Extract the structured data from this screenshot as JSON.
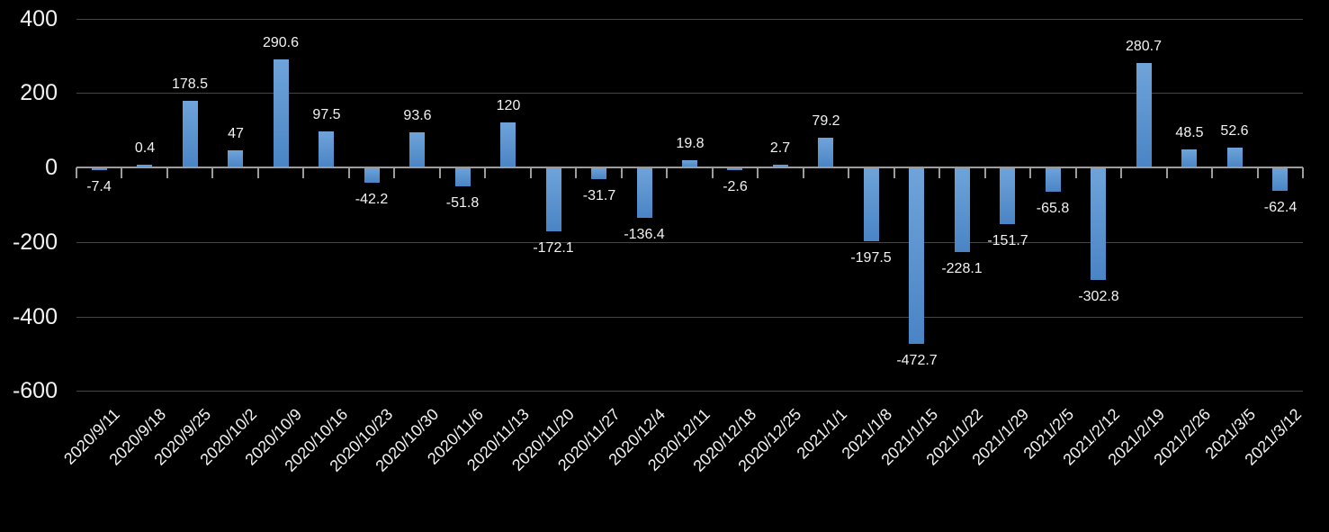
{
  "chart_data": {
    "type": "bar",
    "title": "",
    "xlabel": "",
    "ylabel": "",
    "categories": [
      "2020/9/11",
      "2020/9/18",
      "2020/9/25",
      "2020/10/2",
      "2020/10/9",
      "2020/10/16",
      "2020/10/23",
      "2020/10/30",
      "2020/11/6",
      "2020/11/13",
      "2020/11/20",
      "2020/11/27",
      "2020/12/4",
      "2020/12/11",
      "2020/12/18",
      "2020/12/25",
      "2021/1/1",
      "2021/1/8",
      "2021/1/15",
      "2021/1/22",
      "2021/1/29",
      "2021/2/5",
      "2021/2/12",
      "2021/2/19",
      "2021/2/26",
      "2021/3/5",
      "2021/3/12"
    ],
    "values": [
      -7.4,
      0.4,
      178.5,
      47,
      290.6,
      97.5,
      -42.2,
      93.6,
      -51.8,
      120,
      -172.1,
      -31.7,
      -136.4,
      19.8,
      -2.6,
      2.7,
      79.2,
      -197.5,
      -472.7,
      -228.1,
      -151.7,
      -65.8,
      -302.8,
      280.7,
      48.5,
      52.6,
      -62.4
    ],
    "value_labels": [
      "-7.4",
      "0.4",
      "178.5",
      "47",
      "290.6",
      "97.5",
      "-42.2",
      "93.6",
      "-51.8",
      "120",
      "-172.1",
      "-31.7",
      "-136.4",
      "19.8",
      "-2.6",
      "2.7",
      "79.2",
      "-197.5",
      "-472.7",
      "-228.1",
      "-151.7",
      "-65.8",
      "-302.8",
      "280.7",
      "48.5",
      "52.6",
      "-62.4"
    ],
    "ylim": [
      -600,
      400
    ],
    "yticks": [
      400,
      200,
      0,
      -200,
      -400,
      -600
    ],
    "grid": true,
    "legend": false,
    "colors": {
      "background": "#000000",
      "bar_gradient_top": "#6fa4da",
      "bar_gradient_bottom": "#4a84c5",
      "gridline": "#454545",
      "axis": "#9c9c9c",
      "text": "#f2f2f2"
    }
  }
}
